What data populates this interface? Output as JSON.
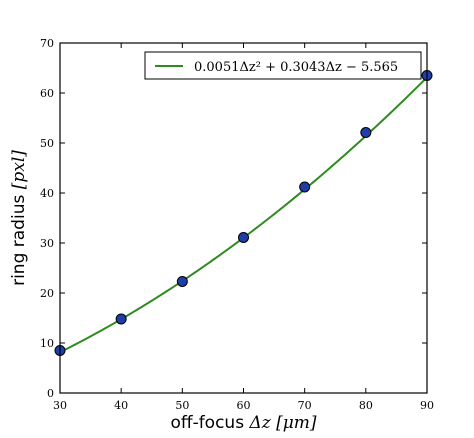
{
  "chart_data": {
    "type": "scatter",
    "title": "",
    "xlabel": "off-focus Δz [μm]",
    "xlabel_parts": {
      "text": "off-focus ",
      "math": "Δz [μm]"
    },
    "ylabel": "ring radius [pxl]",
    "ylabel_parts": {
      "text": "ring radius ",
      "math": "[pxl]"
    },
    "xlim": [
      30,
      90
    ],
    "ylim": [
      0,
      70
    ],
    "xticks": [
      30,
      40,
      50,
      60,
      70,
      80,
      90
    ],
    "yticks": [
      0,
      10,
      20,
      30,
      40,
      50,
      60,
      70
    ],
    "grid": false,
    "legend_position": "top-right",
    "series": [
      {
        "name": "",
        "kind": "points",
        "x": [
          30,
          40,
          50,
          60,
          70,
          80,
          90
        ],
        "y": [
          8.5,
          14.8,
          22.3,
          31.1,
          41.2,
          52.1,
          63.5
        ],
        "color": "#1f3fa8",
        "edge_color": "#000000"
      },
      {
        "name": "0.0051Δz² + 0.3043Δz − 5.565",
        "kind": "fit",
        "coefficients": {
          "a": 0.0051,
          "b": 0.3043,
          "c": -5.565
        },
        "color": "#2e8b1f"
      }
    ]
  }
}
